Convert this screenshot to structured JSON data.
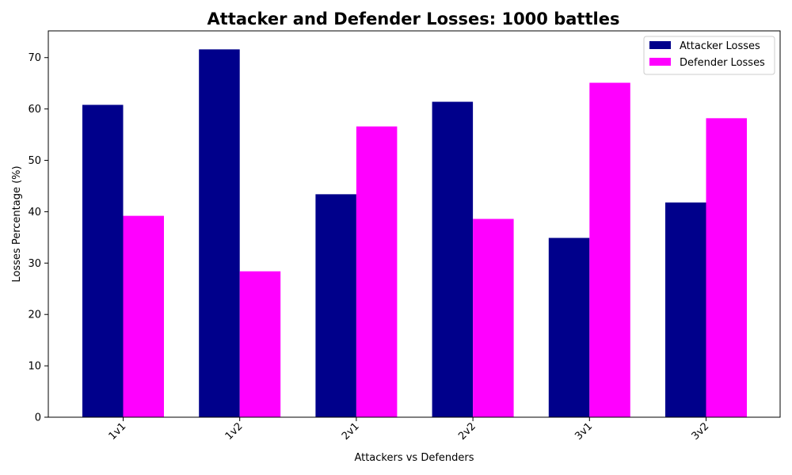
{
  "chart_data": {
    "type": "bar",
    "title": "Attacker and Defender Losses: 1000 battles",
    "xlabel": "Attackers vs Defenders",
    "ylabel": "Losses Percentage (%)",
    "categories": [
      "1v1",
      "1v2",
      "2v1",
      "2v2",
      "3v1",
      "3v2"
    ],
    "series": [
      {
        "name": "Attacker Losses",
        "color": "#00008b",
        "values": [
          60.8,
          71.6,
          43.4,
          61.4,
          34.9,
          41.8
        ]
      },
      {
        "name": "Defender Losses",
        "color": "#ff00ff",
        "values": [
          39.2,
          28.4,
          56.6,
          38.6,
          65.1,
          58.2
        ]
      }
    ],
    "ylim": [
      0,
      75.2
    ],
    "yticks": [
      0,
      10,
      20,
      30,
      40,
      50,
      60,
      70
    ],
    "grid": false,
    "legend_position": "top-right"
  }
}
